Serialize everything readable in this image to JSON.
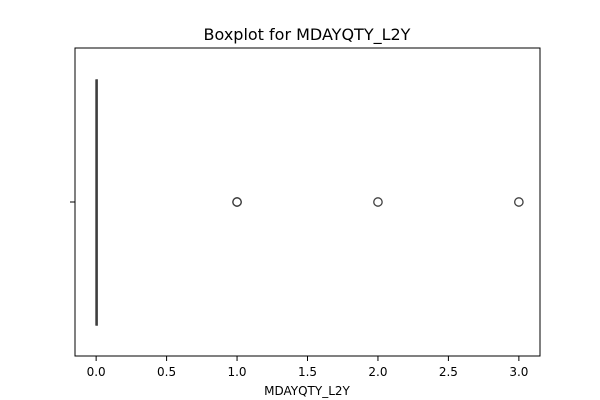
{
  "chart_data": {
    "type": "boxplot",
    "title": "Boxplot for MDAYQTY_L2Y",
    "xlabel": "MDAYQTY_L2Y",
    "ylabel": "",
    "xlim": [
      -0.15,
      3.15
    ],
    "x_ticks": [
      "0.0",
      "0.5",
      "1.0",
      "1.5",
      "2.0",
      "2.5",
      "3.0"
    ],
    "x_tick_values": [
      0.0,
      0.5,
      1.0,
      1.5,
      2.0,
      2.5,
      3.0
    ],
    "box": {
      "min": 0.0,
      "q1": 0.0,
      "median": 0.0,
      "q3": 0.0,
      "max": 0.0
    },
    "outliers": [
      1.0,
      1.0,
      2.0,
      3.0
    ],
    "grid": false,
    "colors": {
      "box_edge": "#3f3f3f",
      "outlier_edge": "#3f3f3f",
      "axis": "#000000"
    }
  }
}
